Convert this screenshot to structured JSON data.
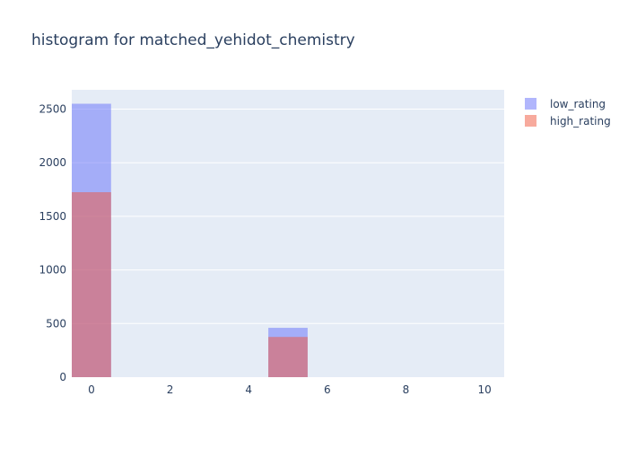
{
  "chart_data": {
    "type": "bar",
    "title": "histogram for matched_yehidot_chemistry",
    "xlabel": "",
    "ylabel": "",
    "barmode": "overlay",
    "xlim": [
      -0.5,
      10.5
    ],
    "ylim": [
      0,
      2680
    ],
    "x_ticks": [
      0,
      2,
      4,
      6,
      8,
      10
    ],
    "y_ticks": [
      0,
      500,
      1000,
      1500,
      2000,
      2500
    ],
    "bin_width": 1,
    "legend_position": "top-right",
    "grid": true,
    "series": [
      {
        "name": "low_rating",
        "color": "#636efa",
        "opacity": 0.5,
        "bins": [
          {
            "x": 0,
            "value": 2550
          },
          {
            "x": 5,
            "value": 460
          }
        ]
      },
      {
        "name": "high_rating",
        "color": "#ef553b",
        "opacity": 0.5,
        "bins": [
          {
            "x": 0,
            "value": 1725
          },
          {
            "x": 5,
            "value": 375
          }
        ]
      }
    ]
  }
}
